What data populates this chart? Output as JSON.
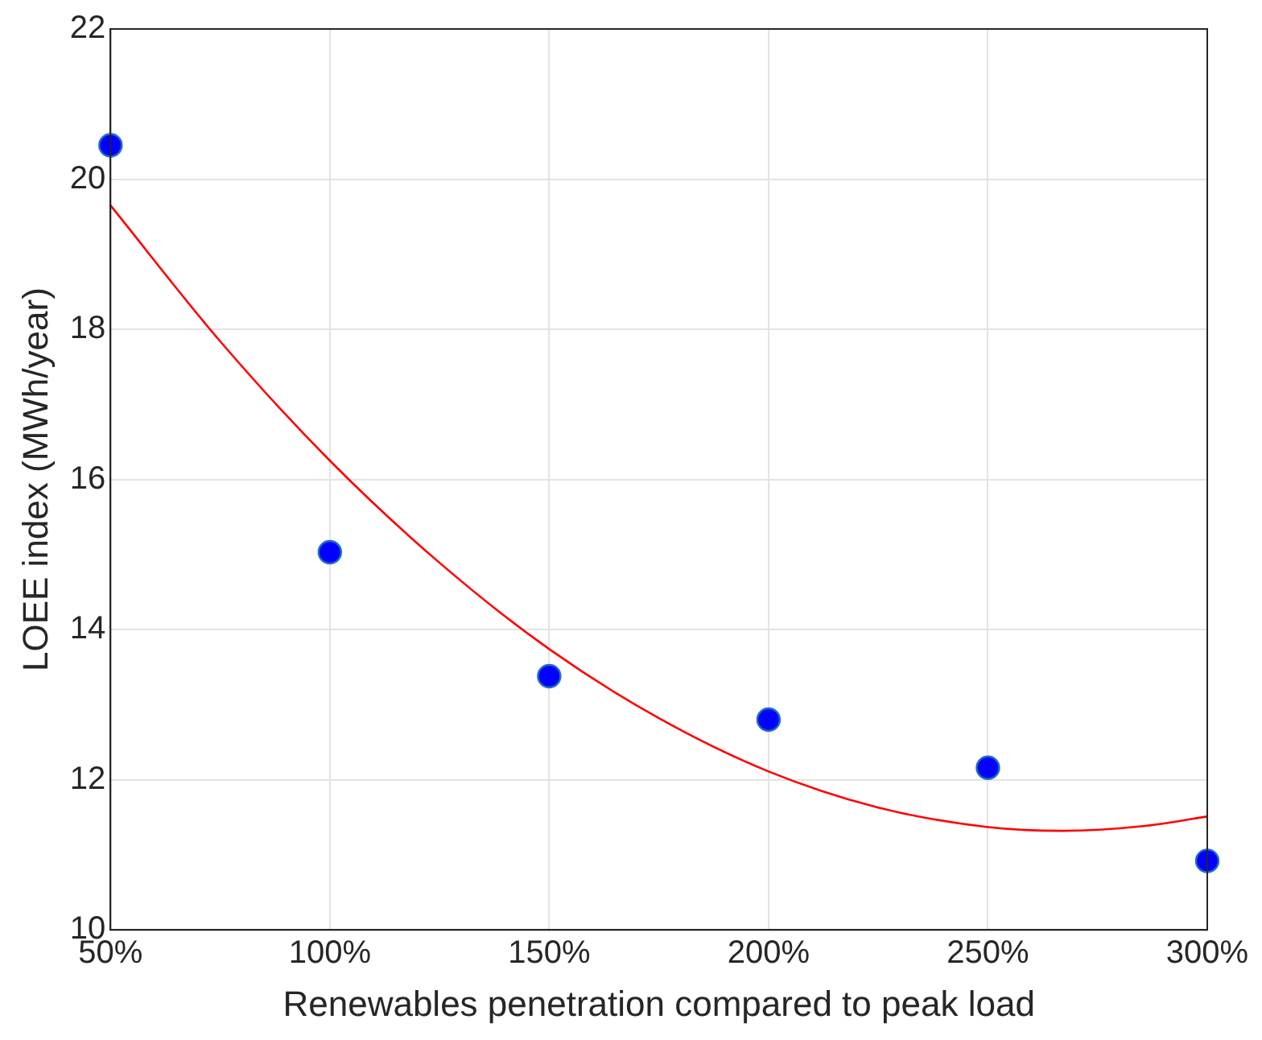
{
  "chart_data": {
    "type": "scatter",
    "xlabel": "Renewables penetration compared to peak load",
    "ylabel": "LOEE index (MWh/year)",
    "xlim": [
      50,
      300
    ],
    "xticks": [
      {
        "value": 50,
        "label": "50%"
      },
      {
        "value": 100,
        "label": "100%"
      },
      {
        "value": 150,
        "label": "150%"
      },
      {
        "value": 200,
        "label": "200%"
      },
      {
        "value": 250,
        "label": "250%"
      },
      {
        "value": 300,
        "label": "300%"
      }
    ],
    "ylim": [
      10,
      22
    ],
    "yticks": [
      10,
      12,
      14,
      16,
      18,
      20,
      22
    ],
    "grid": true,
    "legend": false,
    "series": [
      {
        "color": "#0000ff",
        "marker": "circle",
        "x": [
          50,
          100,
          150,
          200,
          250,
          300
        ],
        "values": [
          20.45,
          15.03,
          13.38,
          12.8,
          12.16,
          10.92
        ]
      },
      {
        "type": "line",
        "color": "#ff0000",
        "marker": "none",
        "line_style": "solid",
        "x": [
          50,
          75,
          100,
          125,
          150,
          175,
          200,
          225,
          250,
          267,
          285,
          300
        ],
        "values": [
          19.65,
          17.84,
          16.25,
          14.89,
          13.74,
          12.82,
          12.11,
          11.63,
          11.37,
          11.32,
          11.38,
          11.51
        ]
      }
    ]
  }
}
